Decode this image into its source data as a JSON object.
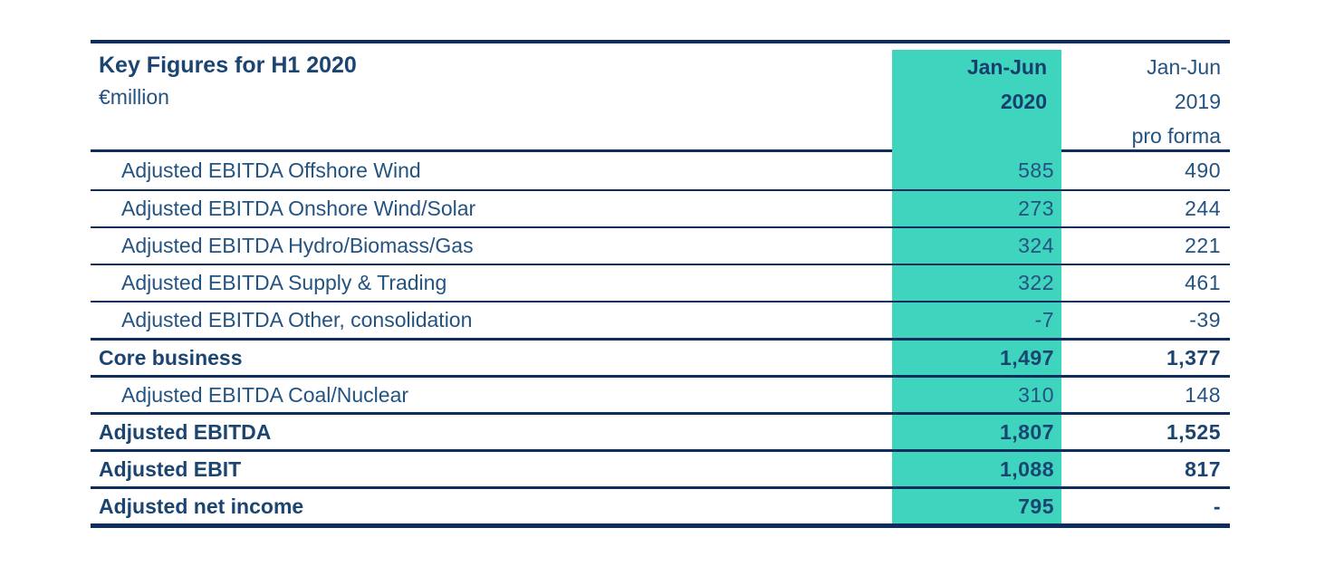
{
  "colors": {
    "highlight_teal": "#3fd4be",
    "text_navy": "#255380",
    "bold_navy": "#1b4570",
    "border_navy": "#0e2d5c"
  },
  "table": {
    "title": "Key Figures for H1 2020",
    "unit": "€million",
    "columns": {
      "current": {
        "line1": "Jan-Jun",
        "line2": "2020"
      },
      "prior": {
        "line1": "Jan-Jun",
        "line2": "2019",
        "line3": "pro forma"
      }
    },
    "rows": [
      {
        "label": "Adjusted EBITDA Offshore Wind",
        "jan_jun_2020": "585",
        "jan_jun_2019": "490",
        "emphasis": false
      },
      {
        "label": "Adjusted EBITDA Onshore Wind/Solar",
        "jan_jun_2020": "273",
        "jan_jun_2019": "244",
        "emphasis": false
      },
      {
        "label": "Adjusted EBITDA Hydro/Biomass/Gas",
        "jan_jun_2020": "324",
        "jan_jun_2019": "221",
        "emphasis": false
      },
      {
        "label": "Adjusted EBITDA Supply & Trading",
        "jan_jun_2020": "322",
        "jan_jun_2019": "461",
        "emphasis": false
      },
      {
        "label": "Adjusted EBITDA Other, consolidation",
        "jan_jun_2020": "-7",
        "jan_jun_2019": "-39",
        "emphasis": false
      },
      {
        "label": "Core business",
        "jan_jun_2020": "1,497",
        "jan_jun_2019": "1,377",
        "emphasis": true
      },
      {
        "label": "Adjusted EBITDA Coal/Nuclear",
        "jan_jun_2020": "310",
        "jan_jun_2019": "148",
        "emphasis": false
      },
      {
        "label": "Adjusted EBITDA",
        "jan_jun_2020": "1,807",
        "jan_jun_2019": "1,525",
        "emphasis": true
      },
      {
        "label": "Adjusted EBIT",
        "jan_jun_2020": "1,088",
        "jan_jun_2019": "817",
        "emphasis": true
      },
      {
        "label": "Adjusted net income",
        "jan_jun_2020": "795",
        "jan_jun_2019": "-",
        "emphasis": true
      }
    ]
  }
}
